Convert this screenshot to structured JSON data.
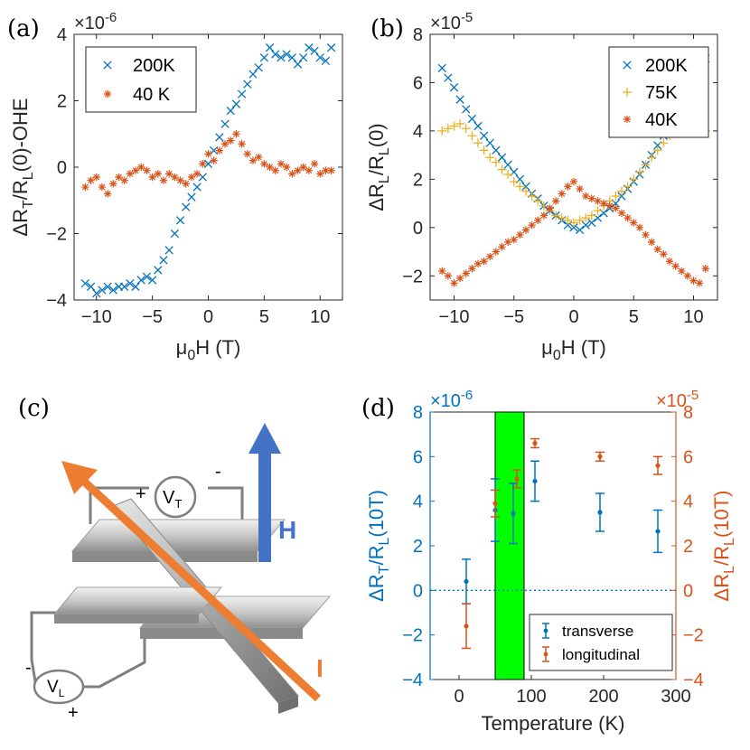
{
  "panels": {
    "a": {
      "letter": "(a)"
    },
    "b": {
      "letter": "(b)"
    },
    "c": {
      "letter": "(c)"
    },
    "d": {
      "letter": "(d)"
    }
  },
  "colors": {
    "blue": "#0072BD",
    "orange": "#D95319",
    "yellow": "#EDB120",
    "green": "#00FF00",
    "hAxis": "#4472C4",
    "iAxis": "#ED7D31"
  },
  "diagram": {
    "vt_label": "V",
    "vt_sub": "T",
    "vl_label": "V",
    "vl_sub": "L",
    "h_label": "H",
    "i_label": "I",
    "plus": "+",
    "minus": "-"
  },
  "chart_data": [
    {
      "id": "a",
      "type": "scatter",
      "xlabel": "μ0H (T)",
      "ylabel": "ΔRT/RL(0)-OHE",
      "multiplier": "×10-6",
      "xlim": [
        -12,
        12
      ],
      "ylim": [
        -4,
        4
      ],
      "xticks": [
        -10,
        -5,
        0,
        5,
        10
      ],
      "yticks": [
        -4,
        -2,
        0,
        2,
        4
      ],
      "legend": "top-left",
      "series": [
        {
          "name": "200K",
          "marker": "x",
          "color": "#0072BD",
          "x": [
            -11,
            -10.5,
            -10,
            -9.5,
            -9,
            -8.5,
            -8,
            -7.5,
            -7,
            -6.5,
            -6,
            -5.5,
            -5,
            -4.5,
            -4,
            -3.5,
            -3,
            -2.5,
            -2,
            -1.5,
            -1,
            -0.5,
            0,
            0.5,
            1,
            1.5,
            2,
            2.5,
            3,
            3.5,
            4,
            4.5,
            5,
            5.5,
            6,
            6.5,
            7,
            7.5,
            8,
            8.5,
            9,
            9.5,
            10,
            10.5,
            11
          ],
          "y": [
            -3.5,
            -3.6,
            -3.8,
            -3.7,
            -3.6,
            -3.7,
            -3.6,
            -3.6,
            -3.5,
            -3.6,
            -3.4,
            -3.3,
            -3.4,
            -3.1,
            -2.8,
            -2.5,
            -2.0,
            -1.6,
            -1.2,
            -0.9,
            -0.6,
            -0.3,
            0.1,
            0.5,
            0.9,
            1.3,
            1.7,
            1.9,
            2.2,
            2.5,
            2.8,
            3.0,
            3.3,
            3.6,
            3.4,
            3.3,
            3.4,
            3.3,
            3.1,
            3.3,
            3.6,
            3.5,
            3.3,
            3.2,
            3.6
          ]
        },
        {
          "name": "40 K",
          "marker": "*",
          "color": "#D95319",
          "x": [
            -11,
            -10.5,
            -10,
            -9.5,
            -9,
            -8.5,
            -8,
            -7.5,
            -7,
            -6.5,
            -6,
            -5.5,
            -5,
            -4.5,
            -4,
            -3.5,
            -3,
            -2.5,
            -2,
            -1.5,
            -1,
            -0.5,
            0,
            0.5,
            1,
            1.5,
            2,
            2.5,
            3,
            3.5,
            4,
            4.5,
            5,
            5.5,
            6,
            6.5,
            7,
            7.5,
            8,
            8.5,
            9,
            9.5,
            10,
            10.5,
            11
          ],
          "y": [
            -0.6,
            -0.4,
            -0.3,
            -0.6,
            -0.8,
            -0.5,
            -0.3,
            -0.4,
            -0.2,
            -0.1,
            0.0,
            -0.1,
            -0.3,
            -0.2,
            -0.4,
            -0.2,
            -0.3,
            -0.4,
            -0.5,
            -0.3,
            -0.2,
            0.1,
            0.4,
            0.2,
            0.5,
            0.7,
            0.8,
            1.0,
            0.7,
            0.4,
            0.2,
            0.3,
            0.1,
            0.0,
            -0.1,
            0.1,
            0.0,
            -0.2,
            -0.1,
            0.0,
            -0.1,
            0.1,
            -0.2,
            -0.1,
            -0.1
          ]
        }
      ]
    },
    {
      "id": "b",
      "type": "scatter",
      "xlabel": "μ0H (T)",
      "ylabel": "ΔRL/RL(0)",
      "multiplier": "×10-5",
      "xlim": [
        -12,
        12
      ],
      "ylim": [
        -3,
        8
      ],
      "xticks": [
        -10,
        -5,
        0,
        5,
        10
      ],
      "yticks": [
        -2,
        0,
        2,
        4,
        6,
        8
      ],
      "legend": "top-right",
      "series": [
        {
          "name": "200K",
          "marker": "x",
          "color": "#0072BD",
          "x": [
            -11,
            -10.5,
            -10,
            -9.5,
            -9,
            -8.5,
            -8,
            -7.5,
            -7,
            -6.5,
            -6,
            -5.5,
            -5,
            -4.5,
            -4,
            -3.5,
            -3,
            -2.5,
            -2,
            -1.5,
            -1,
            -0.5,
            0,
            0.5,
            1,
            1.5,
            2,
            2.5,
            3,
            3.5,
            4,
            4.5,
            5,
            5.5,
            6,
            6.5,
            7,
            7.5,
            8,
            8.5,
            9,
            9.5,
            10,
            10.5,
            11
          ],
          "y": [
            6.6,
            6.2,
            5.8,
            5.3,
            4.9,
            4.5,
            4.2,
            3.8,
            3.5,
            3.2,
            2.9,
            2.6,
            2.3,
            2.0,
            1.7,
            1.4,
            1.2,
            0.9,
            0.7,
            0.5,
            0.3,
            0.1,
            0.0,
            -0.1,
            0.1,
            0.2,
            0.4,
            0.6,
            0.8,
            1.0,
            1.3,
            1.6,
            1.9,
            2.2,
            2.6,
            3.0,
            3.4,
            3.8,
            4.3,
            4.8,
            5.3,
            5.8,
            6.3,
            6.8,
            7.0
          ]
        },
        {
          "name": "75K",
          "marker": "+",
          "color": "#EDB120",
          "x": [
            -11,
            -10.5,
            -10,
            -9.5,
            -9,
            -8.5,
            -8,
            -7.5,
            -7,
            -6.5,
            -6,
            -5.5,
            -5,
            -4.5,
            -4,
            -3.5,
            -3,
            -2.5,
            -2,
            -1.5,
            -1,
            -0.5,
            0,
            0.5,
            1,
            1.5,
            2,
            2.5,
            3,
            3.5,
            4,
            4.5,
            5,
            5.5,
            6,
            6.5,
            7,
            7.5,
            8,
            8.5,
            9,
            9.5,
            10,
            10.5,
            11
          ],
          "y": [
            4.0,
            4.1,
            4.2,
            4.3,
            4.1,
            3.8,
            3.5,
            3.2,
            2.9,
            2.7,
            2.4,
            2.2,
            1.9,
            1.7,
            1.5,
            1.3,
            1.1,
            0.9,
            0.7,
            0.5,
            0.4,
            0.3,
            0.2,
            0.3,
            0.4,
            0.5,
            0.7,
            0.9,
            1.1,
            1.3,
            1.5,
            1.7,
            2.0,
            2.3,
            2.6,
            2.9,
            3.2,
            3.5,
            3.8,
            4.0,
            4.3,
            4.6,
            4.8,
            4.9,
            4.0
          ]
        },
        {
          "name": "40K",
          "marker": "*",
          "color": "#D95319",
          "x": [
            -11,
            -10.5,
            -10,
            -9.5,
            -9,
            -8.5,
            -8,
            -7.5,
            -7,
            -6.5,
            -6,
            -5.5,
            -5,
            -4.5,
            -4,
            -3.5,
            -3,
            -2.5,
            -2,
            -1.5,
            -1,
            -0.5,
            0,
            0.5,
            1,
            1.5,
            2,
            2.5,
            3,
            3.5,
            4,
            4.5,
            5,
            5.5,
            6,
            6.5,
            7,
            7.5,
            8,
            8.5,
            9,
            9.5,
            10,
            10.5,
            11
          ],
          "y": [
            -1.8,
            -2.0,
            -2.3,
            -2.1,
            -1.9,
            -1.7,
            -1.5,
            -1.4,
            -1.2,
            -1.0,
            -0.8,
            -0.6,
            -0.5,
            -0.3,
            -0.1,
            0.1,
            0.3,
            0.5,
            0.8,
            1.1,
            1.4,
            1.7,
            1.9,
            1.6,
            1.3,
            1.2,
            1.1,
            1.0,
            0.9,
            0.8,
            0.6,
            0.4,
            0.2,
            0.0,
            -0.3,
            -0.6,
            -0.9,
            -1.1,
            -1.4,
            -1.6,
            -1.8,
            -2.0,
            -2.2,
            -2.3,
            -1.7
          ]
        }
      ]
    },
    {
      "id": "d",
      "type": "scatter",
      "xlabel": "Temperature (K)",
      "ylabel_left": "ΔRT/RL(10T)",
      "ylabel_right": "ΔRL/RL(10T)",
      "multiplier_left": "×10-6",
      "multiplier_right": "×10-5",
      "xlim": [
        -40,
        300
      ],
      "ylim_left": [
        -4,
        8
      ],
      "ylim_right": [
        -4,
        8
      ],
      "xticks": [
        0,
        100,
        200,
        300
      ],
      "yticks_left": [
        -4,
        -2,
        0,
        2,
        4,
        6,
        8
      ],
      "yticks_right": [
        -4,
        -2,
        0,
        2,
        4,
        6,
        8
      ],
      "shaded_band_x": [
        50,
        90
      ],
      "zero_line": true,
      "legend": "bottom-right",
      "series": [
        {
          "name": "transverse",
          "axis": "left",
          "color": "#0072BD",
          "x": [
            10,
            50,
            75,
            105,
            195,
            275
          ],
          "y": [
            0.4,
            3.6,
            3.45,
            4.9,
            3.5,
            2.65
          ],
          "err": [
            1.0,
            1.4,
            1.35,
            0.9,
            0.85,
            0.95
          ]
        },
        {
          "name": "longitudinal",
          "axis": "right",
          "color": "#D95319",
          "x": [
            10,
            50,
            80,
            105,
            195,
            275
          ],
          "y": [
            -1.6,
            3.9,
            5.0,
            6.6,
            6.0,
            5.6
          ],
          "err": [
            1.0,
            0.6,
            0.4,
            0.2,
            0.2,
            0.4
          ]
        }
      ]
    }
  ]
}
